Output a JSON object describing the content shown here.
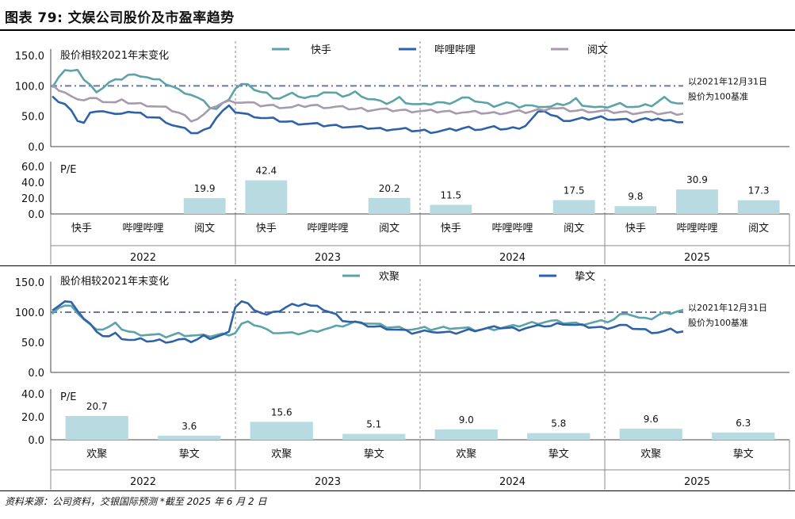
{
  "title": "图表 79: 文娱公司股价及市盈率趋势",
  "source": "资料来源：公司资料，交银国际预测  *截至 2025 年 6 月 2 日",
  "colors": {
    "kuaishou": "#5ba3a8",
    "bilibili": "#2e62a8",
    "yuewen": "#a899ad",
    "huanju": "#5ba3a8",
    "zhiwen": "#2e62a8",
    "bar": "#b7dbe0",
    "baseline": "#6677a8",
    "grid": "#999999"
  },
  "chart_data": [
    {
      "type": "line",
      "panel": "top",
      "title": "股价相较2021年末变化",
      "ylim": [
        0,
        150
      ],
      "yticks": [
        "0.0",
        "50.0",
        "100.0",
        "150.0"
      ],
      "baseline_value": 100,
      "annotation": [
        "以2021年12月31日",
        "股价为100基准"
      ],
      "legend_position": "top",
      "series": [
        {
          "name": "快手",
          "color_key": "kuaishou",
          "values": [
            100,
            115,
            125,
            122,
            128,
            110,
            100,
            92,
            97,
            105,
            108,
            112,
            118,
            117,
            118,
            115,
            110,
            108,
            104,
            99,
            93,
            90,
            86,
            80,
            73,
            65,
            62,
            70,
            80,
            96,
            102,
            100,
            95,
            90,
            87,
            82,
            80,
            83,
            86,
            84,
            80,
            81,
            86,
            90,
            88,
            86,
            84,
            85,
            89,
            85,
            79,
            77,
            73,
            72,
            75,
            80,
            74,
            71,
            69,
            68,
            71,
            73,
            71,
            73,
            76,
            80,
            78,
            76,
            73,
            70,
            68,
            70,
            72,
            68,
            66,
            68,
            66,
            68,
            66,
            65,
            68,
            70,
            72,
            78,
            70,
            67,
            64,
            63,
            66,
            68,
            70,
            68,
            66,
            65,
            67,
            68,
            74,
            80,
            76,
            72,
            70
          ]
        },
        {
          "name": "哔哩哔哩",
          "color_key": "bilibili",
          "values": [
            80,
            75,
            70,
            58,
            45,
            40,
            55,
            55,
            60,
            56,
            52,
            57,
            58,
            55,
            53,
            50,
            48,
            46,
            42,
            36,
            32,
            28,
            24,
            22,
            26,
            34,
            48,
            58,
            65,
            58,
            55,
            52,
            51,
            48,
            46,
            45,
            43,
            41,
            40,
            39,
            38,
            37,
            36,
            35,
            35,
            34,
            34,
            33,
            32,
            31,
            31,
            30,
            29,
            29,
            29,
            28,
            28,
            27,
            26,
            26,
            25,
            25,
            26,
            27,
            28,
            30,
            31,
            30,
            29,
            30,
            31,
            30,
            29,
            30,
            32,
            35,
            45,
            55,
            60,
            52,
            48,
            45,
            43,
            44,
            45,
            46,
            47,
            48,
            47,
            45,
            44,
            43,
            42,
            44,
            45,
            46,
            47,
            42,
            41,
            42,
            40
          ]
        },
        {
          "name": "阅文",
          "color_key": "yuewen",
          "values": [
            100,
            95,
            90,
            82,
            75,
            78,
            80,
            78,
            76,
            74,
            72,
            75,
            73,
            71,
            70,
            69,
            67,
            65,
            63,
            60,
            56,
            50,
            44,
            46,
            52,
            60,
            68,
            72,
            74,
            75,
            73,
            72,
            70,
            68,
            68,
            67,
            66,
            65,
            64,
            66,
            67,
            68,
            67,
            66,
            65,
            65,
            64,
            63,
            62,
            62,
            61,
            61,
            61,
            60,
            60,
            60,
            59,
            59,
            59,
            58,
            58,
            58,
            58,
            57,
            57,
            57,
            56,
            56,
            56,
            55,
            55,
            56,
            56,
            57,
            57,
            57,
            58,
            60,
            62,
            64,
            62,
            61,
            60,
            59,
            59,
            59,
            58,
            58,
            57,
            57,
            57,
            56,
            56,
            56,
            56,
            55,
            55,
            55,
            55,
            55,
            55
          ]
        }
      ]
    },
    {
      "type": "bar",
      "panel": "top",
      "ylabel": "P/E",
      "ylim": [
        0,
        60
      ],
      "yticks": [
        "0.0",
        "20.0",
        "40.0",
        "60.0"
      ],
      "years": [
        "2022",
        "2023",
        "2024",
        "2025"
      ],
      "categories": [
        "快手",
        "哔哩哔哩",
        "阅文"
      ],
      "values": [
        [
          null,
          null,
          19.9
        ],
        [
          42.4,
          null,
          20.2
        ],
        [
          11.5,
          null,
          17.5
        ],
        [
          9.8,
          30.9,
          17.3
        ]
      ],
      "labels": [
        [
          "",
          "",
          "19.9"
        ],
        [
          "42.4",
          "",
          "20.2"
        ],
        [
          "11.5",
          "",
          "17.5"
        ],
        [
          "9.8",
          "30.9",
          "17.3"
        ]
      ]
    },
    {
      "type": "line",
      "panel": "bottom",
      "title": "股价相较2021年末变化",
      "ylim": [
        0,
        150
      ],
      "yticks": [
        "0.0",
        "50.0",
        "100.0",
        "150.0"
      ],
      "baseline_value": 100,
      "annotation": [
        "以2021年12月31日",
        "股价为100基准"
      ],
      "legend_position": "top",
      "series": [
        {
          "name": "欢聚",
          "color_key": "huanju",
          "values": [
            100,
            108,
            110,
            108,
            100,
            88,
            78,
            74,
            72,
            75,
            80,
            73,
            68,
            65,
            64,
            63,
            62,
            61,
            60,
            62,
            64,
            63,
            62,
            61,
            60,
            61,
            62,
            63,
            64,
            66,
            80,
            82,
            80,
            76,
            70,
            68,
            66,
            65,
            64,
            65,
            66,
            68,
            70,
            72,
            73,
            75,
            78,
            80,
            83,
            84,
            82,
            80,
            78,
            76,
            75,
            74,
            73,
            72,
            72,
            73,
            72,
            73,
            74,
            75,
            74,
            73,
            72,
            71,
            71,
            72,
            73,
            74,
            75,
            76,
            78,
            80,
            82,
            83,
            84,
            85,
            84,
            83,
            82,
            81,
            81,
            82,
            83,
            84,
            85,
            88,
            95,
            100,
            95,
            90,
            88,
            90,
            95,
            98,
            100,
            102,
            103
          ]
        },
        {
          "name": "挚文",
          "color_key": "zhiwen",
          "values": [
            100,
            112,
            118,
            115,
            105,
            90,
            80,
            65,
            62,
            60,
            64,
            58,
            55,
            53,
            54,
            53,
            52,
            53,
            52,
            52,
            54,
            53,
            52,
            55,
            60,
            58,
            60,
            62,
            65,
            110,
            118,
            113,
            106,
            100,
            95,
            98,
            103,
            108,
            112,
            113,
            115,
            110,
            108,
            105,
            100,
            95,
            88,
            85,
            83,
            80,
            78,
            76,
            75,
            74,
            72,
            70,
            68,
            66,
            67,
            68,
            70,
            67,
            66,
            65,
            66,
            68,
            70,
            71,
            72,
            73,
            74,
            75,
            74,
            73,
            72,
            74,
            75,
            76,
            78,
            77,
            80,
            82,
            80,
            78,
            77,
            76,
            75,
            74,
            75,
            76,
            78,
            76,
            74,
            72,
            70,
            68,
            67,
            68,
            70,
            68,
            68
          ]
        }
      ]
    },
    {
      "type": "bar",
      "panel": "bottom",
      "ylabel": "P/E",
      "ylim": [
        0,
        40
      ],
      "yticks": [
        "0.0",
        "20.0",
        "40.0"
      ],
      "years": [
        "2022",
        "2023",
        "2024",
        "2025"
      ],
      "categories": [
        "欢聚",
        "挚文"
      ],
      "values": [
        [
          20.7,
          3.6
        ],
        [
          15.6,
          5.1
        ],
        [
          9.0,
          5.8
        ],
        [
          9.6,
          6.3
        ]
      ],
      "labels": [
        [
          "20.7",
          "3.6"
        ],
        [
          "15.6",
          "5.1"
        ],
        [
          "9.0",
          "5.8"
        ],
        [
          "9.6",
          "6.3"
        ]
      ]
    }
  ]
}
